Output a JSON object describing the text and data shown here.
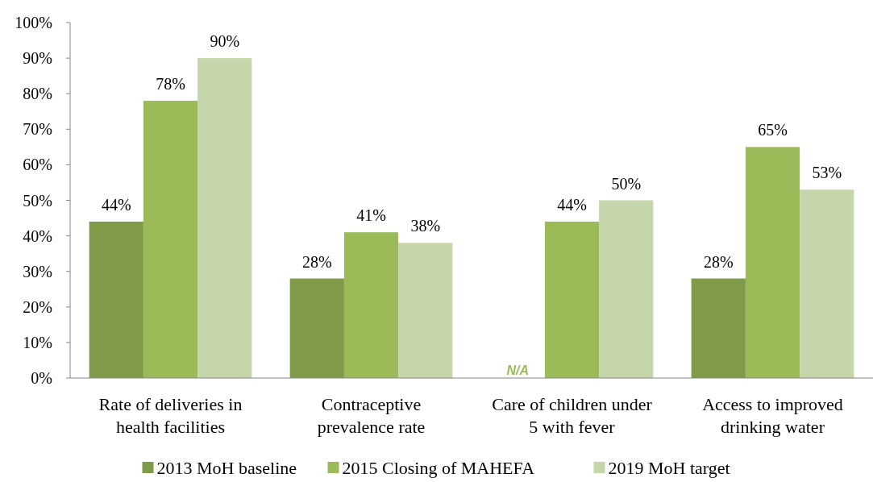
{
  "chart_data": {
    "type": "bar",
    "categories": [
      "Rate of deliveries in health facilities",
      "Contraceptive prevalence rate",
      "Care of children under 5 with fever",
      "Access to improved drinking water"
    ],
    "series": [
      {
        "name": "2013 MoH baseline",
        "color": "#7f9a48",
        "values": [
          44,
          28,
          null,
          28
        ],
        "value_labels": [
          "44%",
          "28%",
          "N/A",
          "28%"
        ]
      },
      {
        "name": "2015 Closing of MAHEFA",
        "color": "#9bbb59",
        "values": [
          78,
          41,
          44,
          65
        ],
        "value_labels": [
          "78%",
          "41%",
          "44%",
          "65%"
        ]
      },
      {
        "name": "2019 MoH target",
        "color": "#c6d6ab",
        "values": [
          90,
          38,
          50,
          53
        ],
        "value_labels": [
          "90%",
          "38%",
          "50%",
          "53%"
        ]
      }
    ],
    "ylim": [
      0,
      100
    ],
    "yticks": [
      {
        "value": 0,
        "label": "0%"
      },
      {
        "value": 10,
        "label": "10%"
      },
      {
        "value": 20,
        "label": "20%"
      },
      {
        "value": 30,
        "label": "30%"
      },
      {
        "value": 40,
        "label": "40%"
      },
      {
        "value": 50,
        "label": "50%"
      },
      {
        "value": 60,
        "label": "60%"
      },
      {
        "value": 70,
        "label": "70%"
      },
      {
        "value": 80,
        "label": "80%"
      },
      {
        "value": 90,
        "label": "90%"
      },
      {
        "value": 100,
        "label": "100%"
      }
    ],
    "grid": false,
    "legend": "bottom"
  }
}
